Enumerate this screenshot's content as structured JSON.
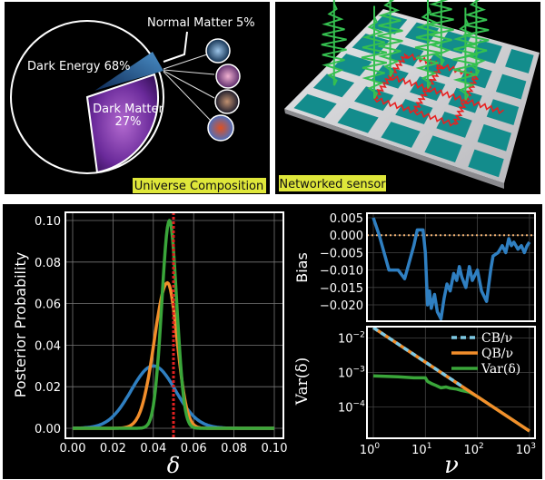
{
  "panels": {
    "universe": {
      "caption": "Universe Composition",
      "slices": [
        {
          "label": "Dark Energy 68%",
          "percent": 68
        },
        {
          "label": "Dark Matter",
          "label2": "27%",
          "percent": 27
        },
        {
          "label": "Normal Matter 5%",
          "percent": 5
        }
      ]
    },
    "sensor": {
      "caption": "Networked sensor"
    }
  },
  "chart_data": [
    {
      "type": "line",
      "xlabel": "δ",
      "ylabel": "Posterior Probability",
      "xlim": [
        0,
        0.1
      ],
      "ylim": [
        0,
        0.1
      ],
      "xticks": [
        "0.00",
        "0.02",
        "0.04",
        "0.06",
        "0.08",
        "0.10"
      ],
      "yticks": [
        "0.00",
        "0.02",
        "0.04",
        "0.06",
        "0.08",
        "0.10"
      ],
      "grid": true,
      "series": [
        {
          "color": "#2f7fc1",
          "shape": "gaussian",
          "center": 0.04,
          "peak": 0.03,
          "sd_left": 0.011,
          "sd_right": 0.011
        },
        {
          "color": "#f28e2b",
          "shape": "gaussian",
          "center": 0.047,
          "peak": 0.07,
          "sd_left": 0.0065,
          "sd_right": 0.0048
        },
        {
          "color": "#3aa63a",
          "shape": "gaussian",
          "center": 0.048,
          "peak": 0.1,
          "sd_left": 0.0038,
          "sd_right": 0.0036
        }
      ],
      "vline": {
        "x": 0.05,
        "color": "#e02020",
        "style": "dotted"
      }
    },
    {
      "type": "line",
      "ylabel": "Bias",
      "xscale": "log",
      "xlim": [
        1,
        1000
      ],
      "ylim": [
        -0.0247,
        0.0063
      ],
      "yticks": [
        "0.005",
        "0.000",
        "−0.005",
        "−0.010",
        "−0.015",
        "−0.020"
      ],
      "ytick_values": [
        0.005,
        0,
        -0.005,
        -0.01,
        -0.015,
        -0.02
      ],
      "grid": true,
      "hline": {
        "y": 0,
        "color": "#f0b070",
        "style": "dotted"
      },
      "series": [
        {
          "color": "#2f7fc1",
          "points": [
            [
              1,
              0.005
            ],
            [
              1.3,
              0.0
            ],
            [
              2,
              -0.01
            ],
            [
              3,
              -0.01
            ],
            [
              4,
              -0.0125
            ],
            [
              6,
              -0.003
            ],
            [
              7,
              0.0015
            ],
            [
              9,
              0.0015
            ],
            [
              10,
              -0.005
            ],
            [
              11,
              -0.02
            ],
            [
              12,
              -0.016
            ],
            [
              13,
              -0.021
            ],
            [
              15,
              -0.017
            ],
            [
              17,
              -0.022
            ],
            [
              20,
              -0.024
            ],
            [
              23,
              -0.018
            ],
            [
              26,
              -0.014
            ],
            [
              30,
              -0.016
            ],
            [
              35,
              -0.011
            ],
            [
              40,
              -0.013
            ],
            [
              45,
              -0.009
            ],
            [
              50,
              -0.012
            ],
            [
              60,
              -0.015
            ],
            [
              70,
              -0.009
            ],
            [
              80,
              -0.013
            ],
            [
              100,
              -0.01
            ],
            [
              120,
              -0.016
            ],
            [
              150,
              -0.019
            ],
            [
              180,
              -0.01
            ],
            [
              200,
              -0.006
            ],
            [
              250,
              -0.005
            ],
            [
              300,
              -0.003
            ],
            [
              350,
              -0.005
            ],
            [
              400,
              -0.001
            ],
            [
              450,
              -0.003
            ],
            [
              500,
              -0.002
            ],
            [
              600,
              -0.004
            ],
            [
              700,
              -0.003
            ],
            [
              800,
              -0.005
            ],
            [
              900,
              -0.003
            ],
            [
              1000,
              -0.002
            ]
          ]
        }
      ]
    },
    {
      "type": "line",
      "xlabel": "ν",
      "ylabel": "Var(δ)",
      "xscale": "log",
      "yscale": "log",
      "xlim": [
        1,
        1000
      ],
      "ylim": [
        1.12e-05,
        0.02
      ],
      "xticks": [
        {
          "base": "10",
          "exp": "0"
        },
        {
          "base": "10",
          "exp": "1"
        },
        {
          "base": "10",
          "exp": "2"
        },
        {
          "base": "10",
          "exp": "3"
        }
      ],
      "yticks": [
        {
          "base": "10",
          "exp": "−2"
        },
        {
          "base": "10",
          "exp": "−3"
        },
        {
          "base": "10",
          "exp": "−4"
        }
      ],
      "legend": "top-right",
      "series": [
        {
          "name": "QB/ν",
          "color": "#f28e2b",
          "style": "solid",
          "points": [
            [
              1,
              0.02
            ],
            [
              1000,
              2e-05
            ]
          ]
        },
        {
          "name": "CB/ν",
          "color": "#7ec8e3",
          "style": "dashed",
          "points": [
            [
              1,
              0.02
            ],
            [
              50,
              0.0004
            ]
          ]
        },
        {
          "name": "Var(δ)",
          "color": "#3aa63a",
          "style": "solid",
          "points": [
            [
              1,
              0.0008
            ],
            [
              3,
              0.00075
            ],
            [
              6,
              0.0007
            ],
            [
              10,
              0.0007
            ],
            [
              11,
              0.00055
            ],
            [
              13,
              0.00048
            ],
            [
              16,
              0.00042
            ],
            [
              20,
              0.00036
            ],
            [
              25,
              0.00038
            ],
            [
              30,
              0.00035
            ],
            [
              40,
              0.00033
            ],
            [
              50,
              0.0003
            ],
            [
              70,
              0.00027
            ],
            [
              100,
              0.0002
            ],
            [
              1000,
              2e-05
            ]
          ]
        }
      ]
    }
  ]
}
